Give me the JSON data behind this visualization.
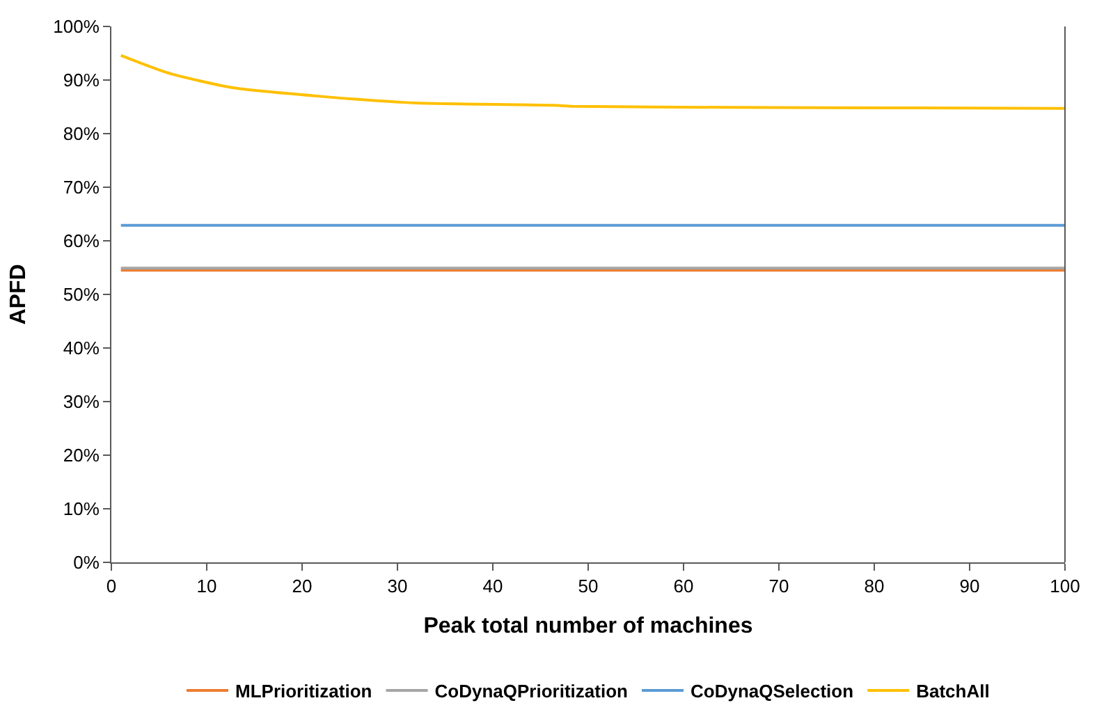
{
  "chart_data": {
    "type": "line",
    "xlabel": "Peak total number of machines",
    "ylabel": "APFD",
    "xlim": [
      0,
      100
    ],
    "xticks": [
      0,
      10,
      20,
      30,
      40,
      50,
      60,
      70,
      80,
      90,
      100
    ],
    "ylim": [
      0,
      1
    ],
    "yticks": [
      {
        "value": 0,
        "label": "0%"
      },
      {
        "value": 0.1,
        "label": "10%"
      },
      {
        "value": 0.2,
        "label": "20%"
      },
      {
        "value": 0.3,
        "label": "30%"
      },
      {
        "value": 0.4,
        "label": "40%"
      },
      {
        "value": 0.5,
        "label": "50%"
      },
      {
        "value": 0.6,
        "label": "60%"
      },
      {
        "value": 0.7,
        "label": "70%"
      },
      {
        "value": 0.8,
        "label": "80%"
      },
      {
        "value": 0.9,
        "label": "90%"
      },
      {
        "value": 1,
        "label": "100%"
      }
    ],
    "grid": false,
    "legend": "bottom",
    "marker": "none",
    "line_style": "solid",
    "series": [
      {
        "name": "MLPrioritization",
        "color": "#ed7d31",
        "x": [
          1,
          100
        ],
        "values": [
          0.545,
          0.545
        ]
      },
      {
        "name": "CoDynaQPrioritization",
        "color": "#a5a5a5",
        "x": [
          1,
          100
        ],
        "values": [
          0.549,
          0.549
        ]
      },
      {
        "name": "CoDynaQSelection",
        "color": "#5b9bd5",
        "x": [
          1,
          100
        ],
        "values": [
          0.629,
          0.629
        ]
      },
      {
        "name": "BatchAll",
        "color": "#ffc000",
        "x": [
          1,
          6,
          12.6,
          22.3,
          32,
          46.4,
          48.4,
          64.7,
          84.2,
          100
        ],
        "values": [
          0.946,
          0.913,
          0.886,
          0.869,
          0.857,
          0.853,
          0.851,
          0.849,
          0.848,
          0.847
        ]
      }
    ]
  }
}
